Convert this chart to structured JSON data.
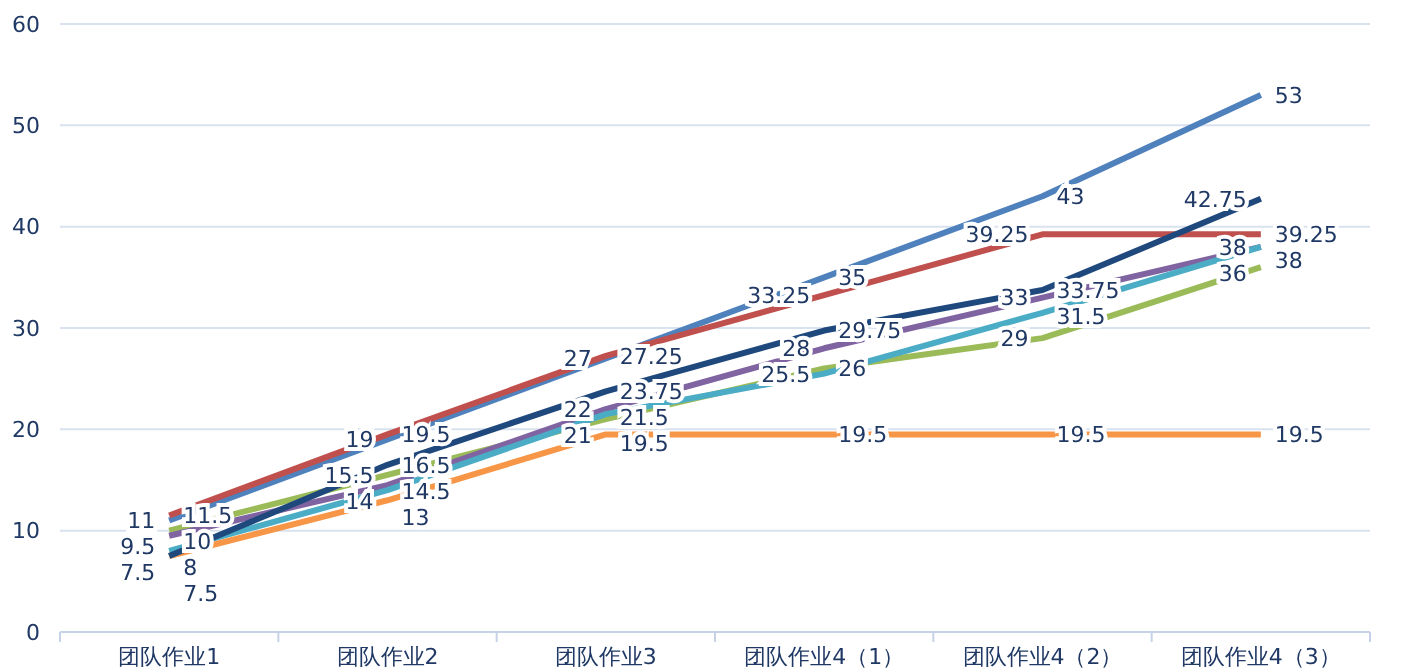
{
  "chart_data": {
    "type": "line",
    "categories": [
      "团队作业1",
      "团队作业2",
      "团队作业3",
      "团队作业4（1）",
      "团队作业4（2）",
      "团队作业4（3）"
    ],
    "series": [
      {
        "color": "#4f81bd",
        "values": [
          11,
          19,
          27,
          35,
          43,
          53
        ]
      },
      {
        "color": "#c0504d",
        "values": [
          11.5,
          19.5,
          27.25,
          33.25,
          39.25,
          39.25
        ]
      },
      {
        "color": "#9bbb59",
        "values": [
          10,
          15.5,
          21,
          26,
          29,
          36
        ]
      },
      {
        "color": "#8064a2",
        "values": [
          9.5,
          14.5,
          22,
          28,
          33,
          38
        ]
      },
      {
        "color": "#4bacc6",
        "values": [
          8,
          14,
          21.5,
          25.5,
          31.5,
          38
        ]
      },
      {
        "color": "#f79646",
        "values": [
          7.5,
          13,
          19.5,
          19.5,
          19.5,
          19.5
        ]
      },
      {
        "color": "#1f497d",
        "values": [
          7.5,
          16.5,
          23.75,
          29.75,
          33.75,
          42.75
        ]
      }
    ],
    "ylim": [
      0,
      60
    ],
    "yticks": [
      0,
      10,
      20,
      30,
      40,
      50,
      60
    ],
    "grid": "y",
    "data_labels": true,
    "marker": "none",
    "line_style": "solid"
  }
}
